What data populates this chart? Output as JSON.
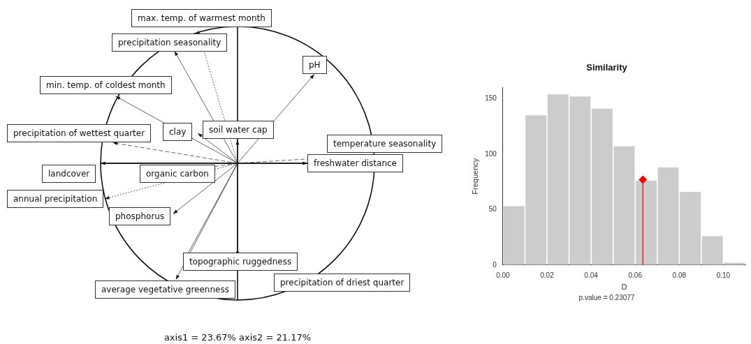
{
  "chart_data": [
    {
      "type": "other",
      "annotations": [
        "max. temp. of warmest month",
        "precipitation seasonality",
        "pH",
        "min. temp. of coldest month",
        "precipitation of wettest quarter",
        "clay",
        "soil water cap",
        "temperature seasonality",
        "freshwater distance",
        "landcover",
        "organic carbon",
        "annual precipitation",
        "phosphorus",
        "topographic ruggedness",
        "precipitation of driest quarter",
        "average vegetative greenness",
        "axis1 = 23.67% axis2 = 21.17%"
      ]
    },
    {
      "type": "histogram",
      "title": "Similarity",
      "xlabel": "D",
      "ylabel": "Frequency",
      "annotations": [
        "p.value = 0.23077"
      ],
      "bins": [
        0,
        0.01,
        0.02,
        0.03,
        0.04,
        0.05,
        0.06,
        0.07,
        0.08,
        0.09,
        0.1,
        0.11
      ],
      "values": [
        53,
        135,
        154,
        152,
        141,
        107,
        76,
        88,
        66,
        26,
        2
      ],
      "color": "#cccccc",
      "series": [
        {
          "type": "lollipop",
          "x": [
            0.0635
          ],
          "values": [
            77
          ],
          "color": "#ff0000",
          "marker": "diamond"
        }
      ],
      "xlim": [
        0,
        0.11
      ],
      "xticks": [
        {
          "value": 0,
          "label": "0.00"
        },
        {
          "value": 0.02,
          "label": "0.02"
        },
        {
          "value": 0.04,
          "label": "0.04"
        },
        {
          "value": 0.06,
          "label": "0.06"
        },
        {
          "value": 0.08,
          "label": "0.08"
        },
        {
          "value": 0.1,
          "label": "0.10"
        }
      ],
      "ylim": [
        0,
        160
      ],
      "yticks": [
        0,
        50,
        100,
        150
      ],
      "grid": false,
      "legend": false
    }
  ]
}
